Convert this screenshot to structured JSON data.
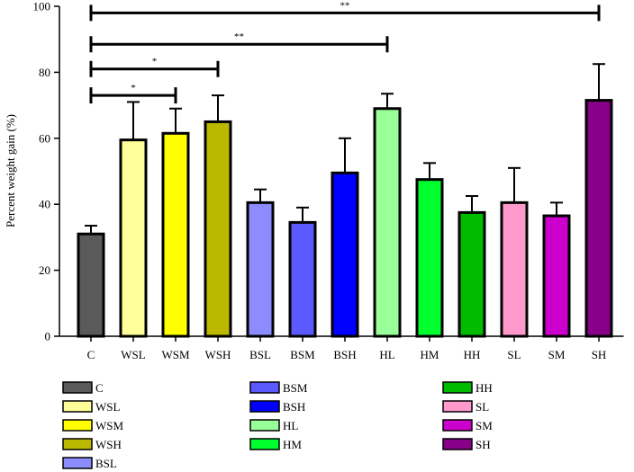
{
  "chart_data": {
    "type": "bar",
    "title": "",
    "xlabel": "",
    "ylabel": "Percent weight gain (%)",
    "ylim": [
      0,
      100
    ],
    "yticks": [
      0,
      20,
      40,
      60,
      80,
      100
    ],
    "grid": false,
    "categories": [
      "C",
      "WSL",
      "WSM",
      "WSH",
      "BSL",
      "BSM",
      "BSH",
      "HL",
      "HM",
      "HH",
      "SL",
      "SM",
      "SH"
    ],
    "values": [
      31,
      59.5,
      61.5,
      65,
      40.5,
      34.5,
      49.5,
      69,
      47.5,
      37.5,
      40.5,
      36.5,
      71.5
    ],
    "errors": [
      2.5,
      11.5,
      7.5,
      8,
      4,
      4.5,
      10.5,
      4.5,
      5,
      5,
      10.5,
      4,
      11
    ],
    "colors": [
      "#5a5a5a",
      "#ffff99",
      "#ffff00",
      "#bcb700",
      "#8c8cff",
      "#5a5aff",
      "#0000ff",
      "#99ff99",
      "#00ff2e",
      "#00bb00",
      "#ff99cc",
      "#cc00cc",
      "#880088"
    ],
    "significance": [
      {
        "from": "C",
        "to": "WSM",
        "y": 73,
        "label": "*"
      },
      {
        "from": "C",
        "to": "WSH",
        "y": 81,
        "label": "*"
      },
      {
        "from": "C",
        "to": "HL",
        "y": 88.5,
        "label": "**"
      },
      {
        "from": "C",
        "to": "SH",
        "y": 98,
        "label": "**"
      }
    ],
    "legend_position": "bottom",
    "legend_columns": [
      [
        "C",
        "WSL",
        "WSM",
        "WSH",
        "BSL"
      ],
      [
        "BSM",
        "BSH",
        "HL",
        "HM"
      ],
      [
        "HH",
        "SL",
        "SM",
        "SH"
      ]
    ]
  }
}
